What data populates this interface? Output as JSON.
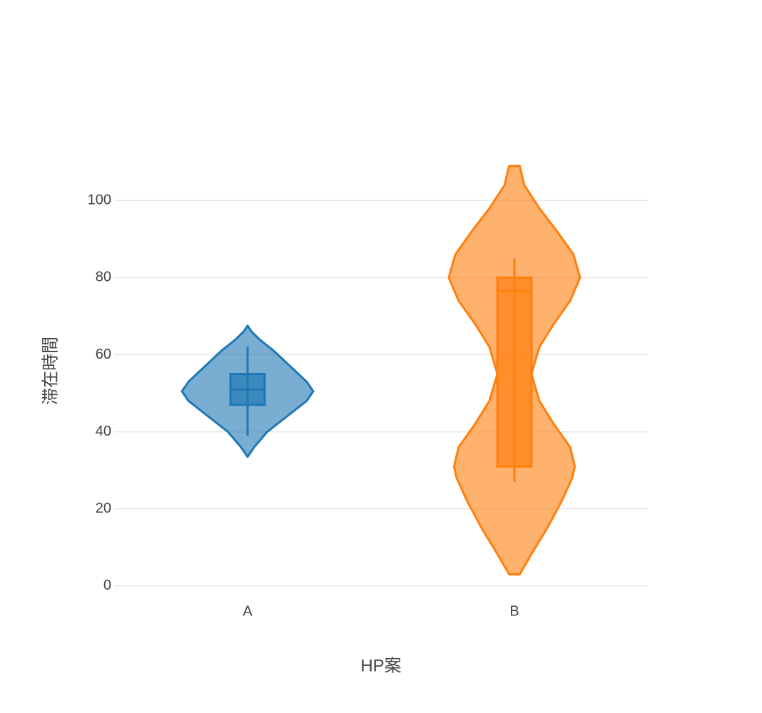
{
  "chart_data": {
    "type": "violin",
    "x_label": "HP案",
    "y_label": "滞在時間",
    "categories": [
      "A",
      "B"
    ],
    "ylim": [
      -3,
      113
    ],
    "yticks": [
      0,
      20,
      40,
      60,
      80,
      100
    ],
    "grid": true,
    "series": [
      {
        "name": "A",
        "color": "#1f77b4",
        "box": {
          "min": 39,
          "q1": 47,
          "median": 51,
          "q3": 55,
          "max": 62
        },
        "density": {
          "y": [
            33.5,
            36,
            40,
            44,
            48,
            50.5,
            53,
            57,
            61,
            64,
            66,
            67.5
          ],
          "values": [
            0,
            0.1,
            0.3,
            0.6,
            0.9,
            1.0,
            0.9,
            0.65,
            0.4,
            0.18,
            0.06,
            0
          ]
        }
      },
      {
        "name": "B",
        "color": "#ff7f0e",
        "box": {
          "min": 27,
          "q1": 31,
          "median": 76.5,
          "q3": 80,
          "max": 85
        },
        "density": {
          "y": [
            3,
            8,
            15,
            22,
            28,
            31,
            36,
            42,
            48,
            55,
            62,
            68,
            74,
            80,
            86,
            92,
            98,
            104,
            109
          ],
          "values": [
            0.08,
            0.25,
            0.5,
            0.72,
            0.88,
            0.92,
            0.85,
            0.6,
            0.38,
            0.26,
            0.38,
            0.6,
            0.85,
            1.0,
            0.9,
            0.65,
            0.38,
            0.15,
            0.08
          ]
        }
      }
    ]
  }
}
